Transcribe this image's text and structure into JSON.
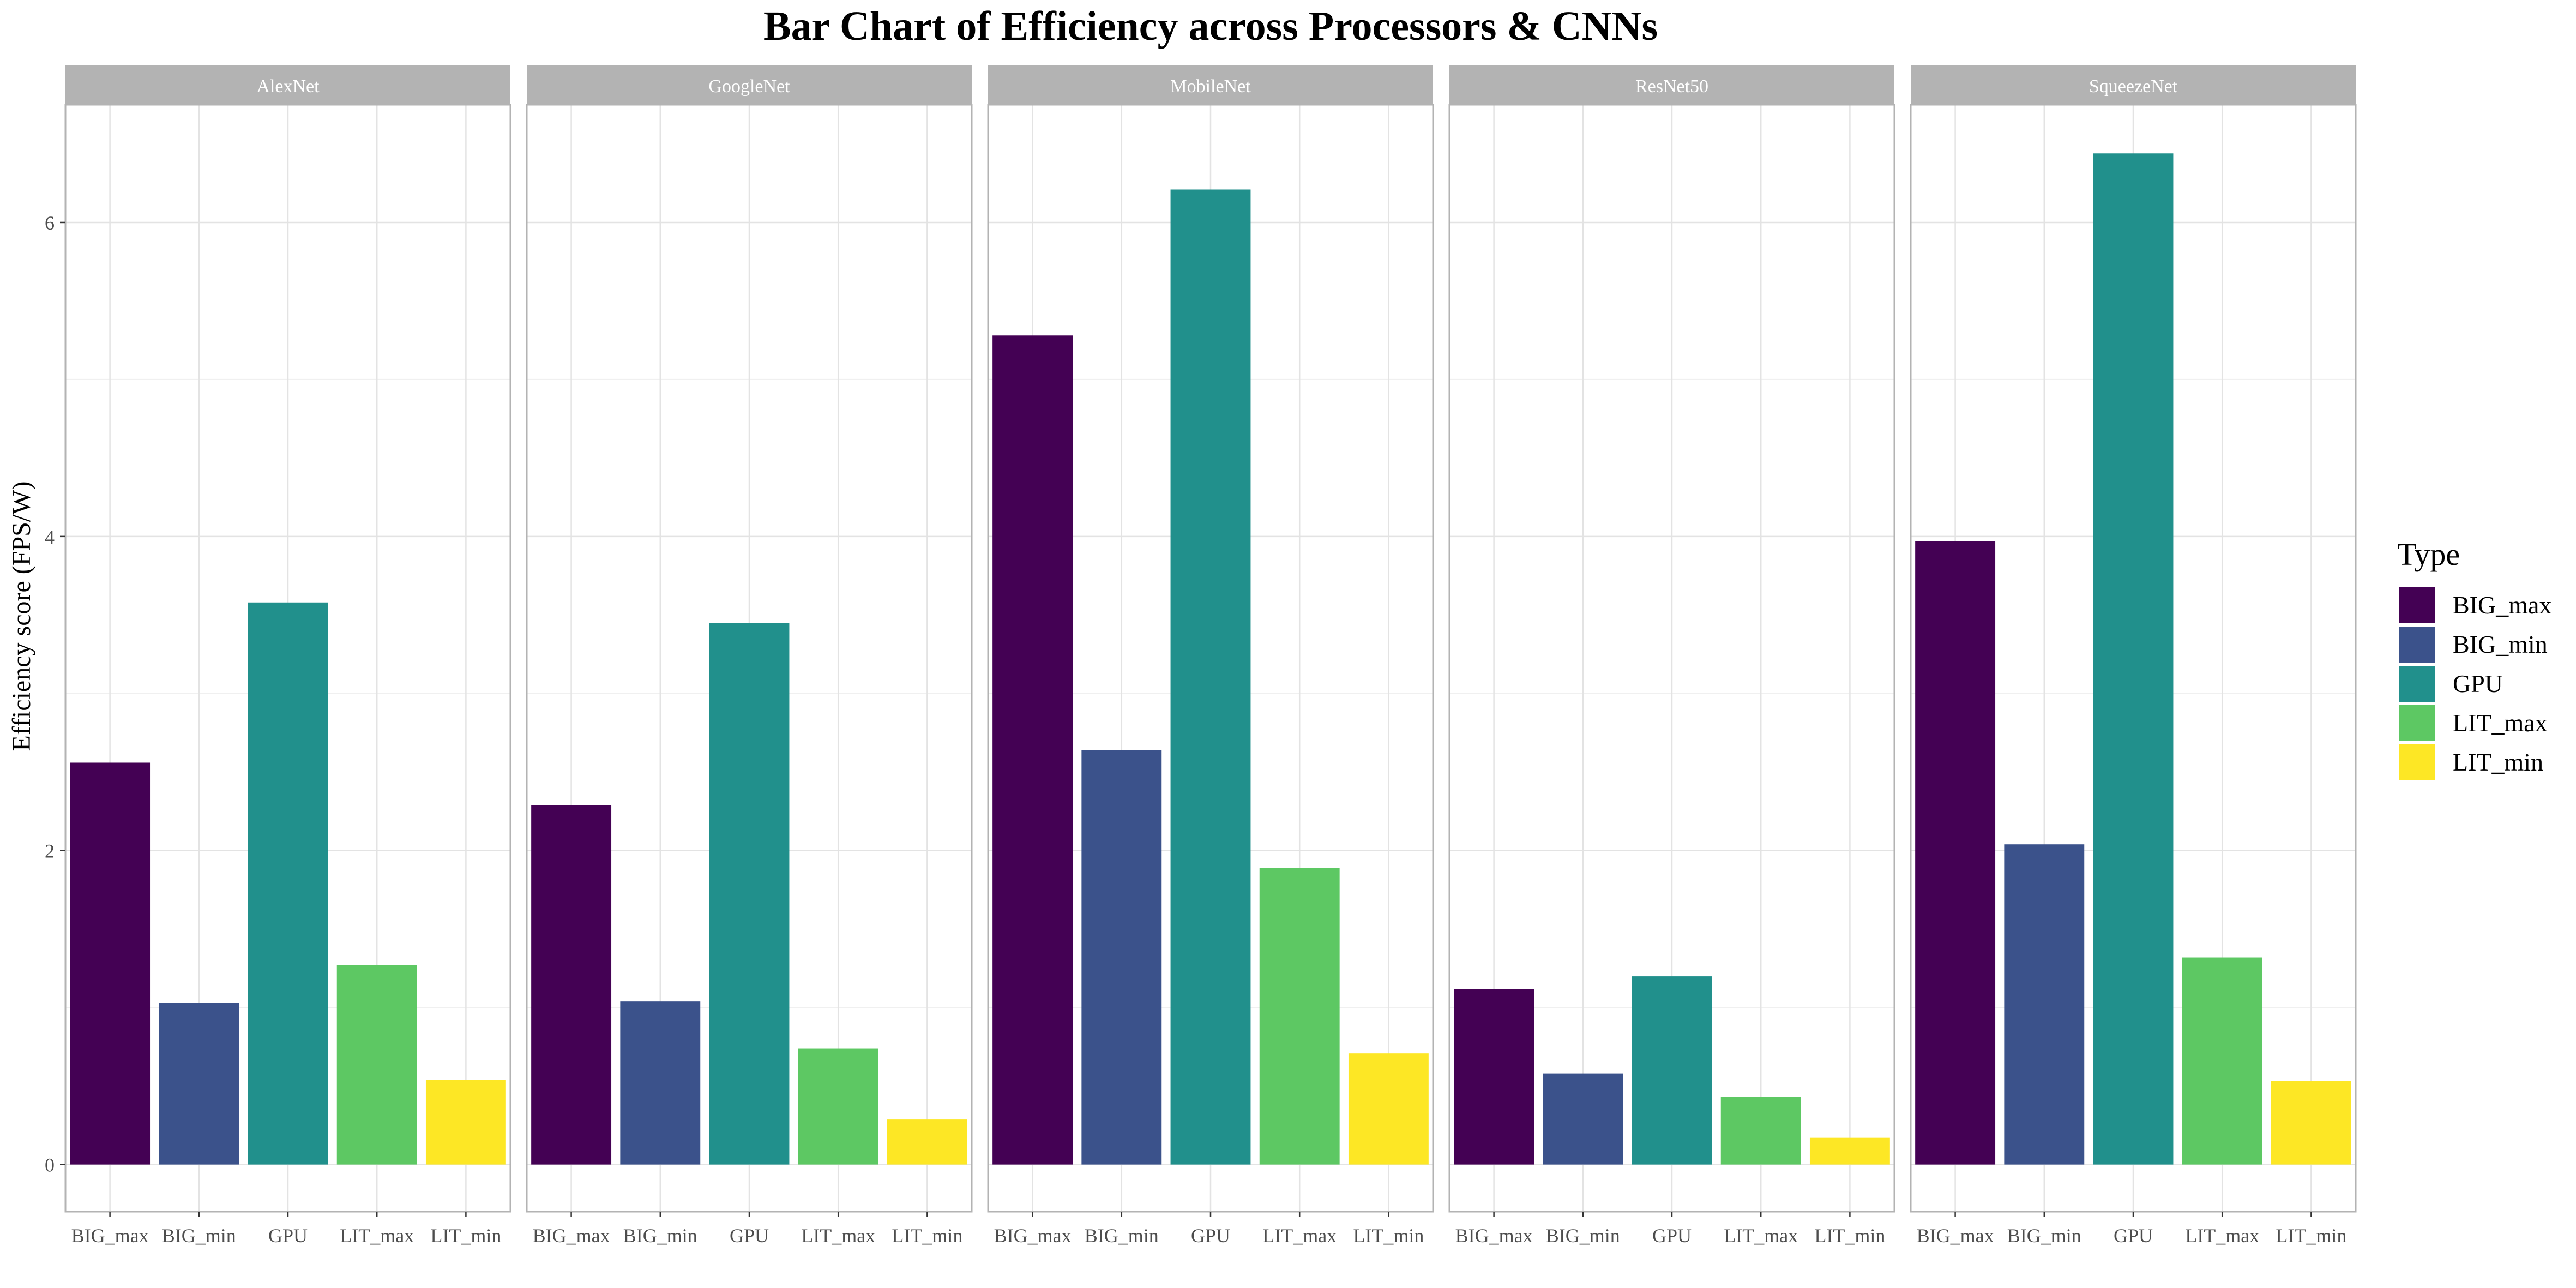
{
  "chart_data": {
    "type": "bar",
    "title": "Bar Chart of Efficiency across Processors & CNNs",
    "xlabel": "",
    "ylabel": "Efficiency score (FPS/W)",
    "ylim": [
      -0.3,
      6.75
    ],
    "yticks": [
      0,
      2,
      4,
      6
    ],
    "grid": true,
    "legend_position": "right",
    "legend_title": "Type",
    "categories": [
      "BIG_max",
      "BIG_min",
      "GPU",
      "LIT_max",
      "LIT_min"
    ],
    "colors": {
      "BIG_max": "#440154",
      "BIG_min": "#3B528B",
      "GPU": "#21908C",
      "LIT_max": "#5DC863",
      "LIT_min": "#FDE725"
    },
    "panels": [
      {
        "name": "AlexNet",
        "values": [
          2.56,
          1.03,
          3.58,
          1.27,
          0.54
        ]
      },
      {
        "name": "GoogleNet",
        "values": [
          2.29,
          1.04,
          3.45,
          0.74,
          0.29
        ]
      },
      {
        "name": "MobileNet",
        "values": [
          5.28,
          2.64,
          6.21,
          1.89,
          0.71
        ]
      },
      {
        "name": "ResNet50",
        "values": [
          1.12,
          0.58,
          1.2,
          0.43,
          0.17
        ]
      },
      {
        "name": "SqueezeNet",
        "values": [
          3.97,
          2.04,
          6.44,
          1.32,
          0.53
        ]
      }
    ]
  }
}
